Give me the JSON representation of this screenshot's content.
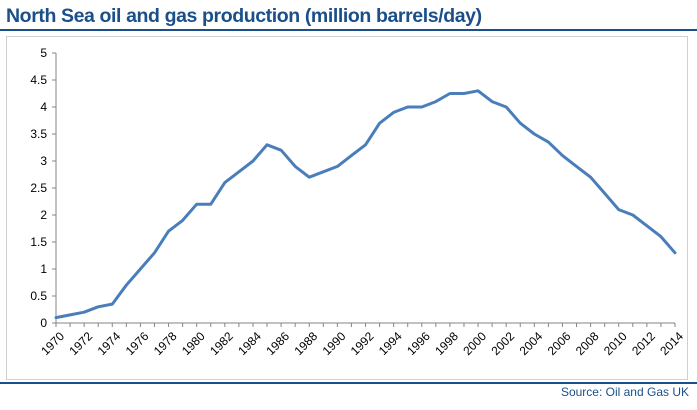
{
  "page": {
    "title": "North Sea oil and gas production (million barrels/day)",
    "source": "Source: Oil and Gas UK"
  },
  "colors": {
    "title": "#1a4f8a",
    "line": "#4a7ebb",
    "axis": "#868686"
  },
  "chart_data": {
    "type": "line",
    "title": "North Sea oil and gas production (million barrels/day)",
    "xlabel": "",
    "ylabel": "",
    "ylim": [
      0,
      5
    ],
    "yticks": [
      "0",
      "0.5",
      "1",
      "1.5",
      "2",
      "2.5",
      "3",
      "3.5",
      "4",
      "4.5",
      "5"
    ],
    "xticks": [
      "1970",
      "1972",
      "1974",
      "1976",
      "1978",
      "1980",
      "1982",
      "1984",
      "1986",
      "1988",
      "1990",
      "1992",
      "1994",
      "1996",
      "1998",
      "2000",
      "2002",
      "2004",
      "2006",
      "2008",
      "2010",
      "2012",
      "2014"
    ],
    "grid": false,
    "legend": "none",
    "x": [
      1970,
      1971,
      1972,
      1973,
      1974,
      1975,
      1976,
      1977,
      1978,
      1979,
      1980,
      1981,
      1982,
      1983,
      1984,
      1985,
      1986,
      1987,
      1988,
      1989,
      1990,
      1991,
      1992,
      1993,
      1994,
      1995,
      1996,
      1997,
      1998,
      1999,
      2000,
      2001,
      2002,
      2003,
      2004,
      2005,
      2006,
      2007,
      2008,
      2009,
      2010,
      2011,
      2012,
      2013,
      2014
    ],
    "series": [
      {
        "values": [
          0.1,
          0.15,
          0.2,
          0.3,
          0.35,
          0.7,
          1.0,
          1.3,
          1.7,
          1.9,
          2.2,
          2.2,
          2.6,
          2.8,
          3.0,
          3.3,
          3.2,
          2.9,
          2.7,
          2.8,
          2.9,
          3.1,
          3.3,
          3.7,
          3.9,
          4.0,
          4.0,
          4.1,
          4.25,
          4.25,
          4.3,
          4.1,
          4.0,
          3.7,
          3.5,
          3.35,
          3.1,
          2.9,
          2.7,
          2.4,
          2.1,
          2.0,
          1.8,
          1.6,
          1.3
        ]
      }
    ]
  }
}
